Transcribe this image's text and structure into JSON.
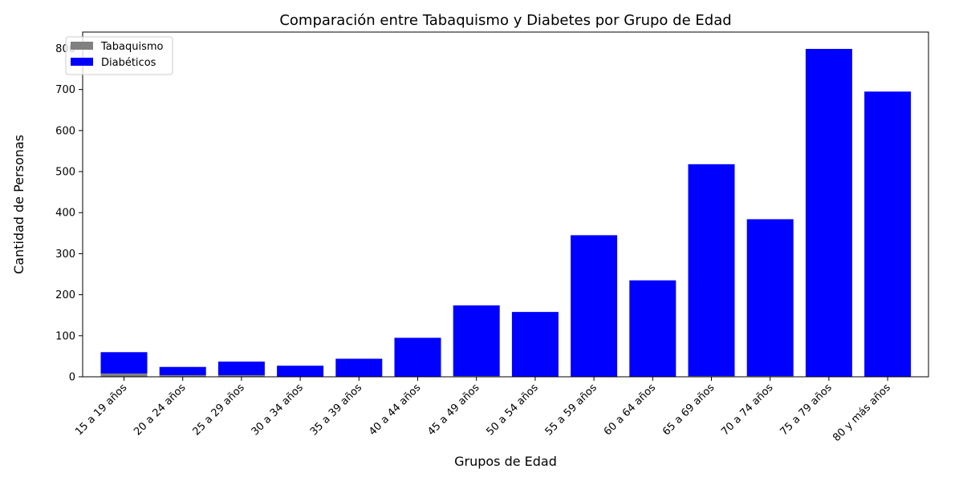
{
  "chart_data": {
    "type": "bar",
    "stacked": true,
    "title": "Comparación entre Tabaquismo y Diabetes por Grupo de Edad",
    "xlabel": "Grupos de Edad",
    "ylabel": "Cantidad de Personas",
    "ylim": [
      0,
      840
    ],
    "yticks": [
      0,
      100,
      200,
      300,
      400,
      500,
      600,
      700,
      800
    ],
    "categories": [
      "15 a 19 años",
      "20 a 24 años",
      "25 a 29 años",
      "30 a 34 años",
      "35 a 39 años",
      "40 a 44 años",
      "45 a 49 años",
      "50 a 54 años",
      "55 a 59 años",
      "60 a 64 años",
      "65 a 69 años",
      "70 a 74 años",
      "75 a 79 años",
      "80 y más años"
    ],
    "series": [
      {
        "name": "Tabaquismo",
        "color": "#808080",
        "values": [
          8,
          4,
          4,
          1,
          1,
          1,
          2,
          1,
          1,
          1,
          2,
          2,
          1,
          1
        ]
      },
      {
        "name": "Diabéticos",
        "color": "#0000ff",
        "values": [
          52,
          20,
          33,
          26,
          43,
          94,
          172,
          157,
          344,
          234,
          516,
          382,
          798,
          694
        ]
      }
    ],
    "legend_position": "top-left",
    "grid": false
  }
}
